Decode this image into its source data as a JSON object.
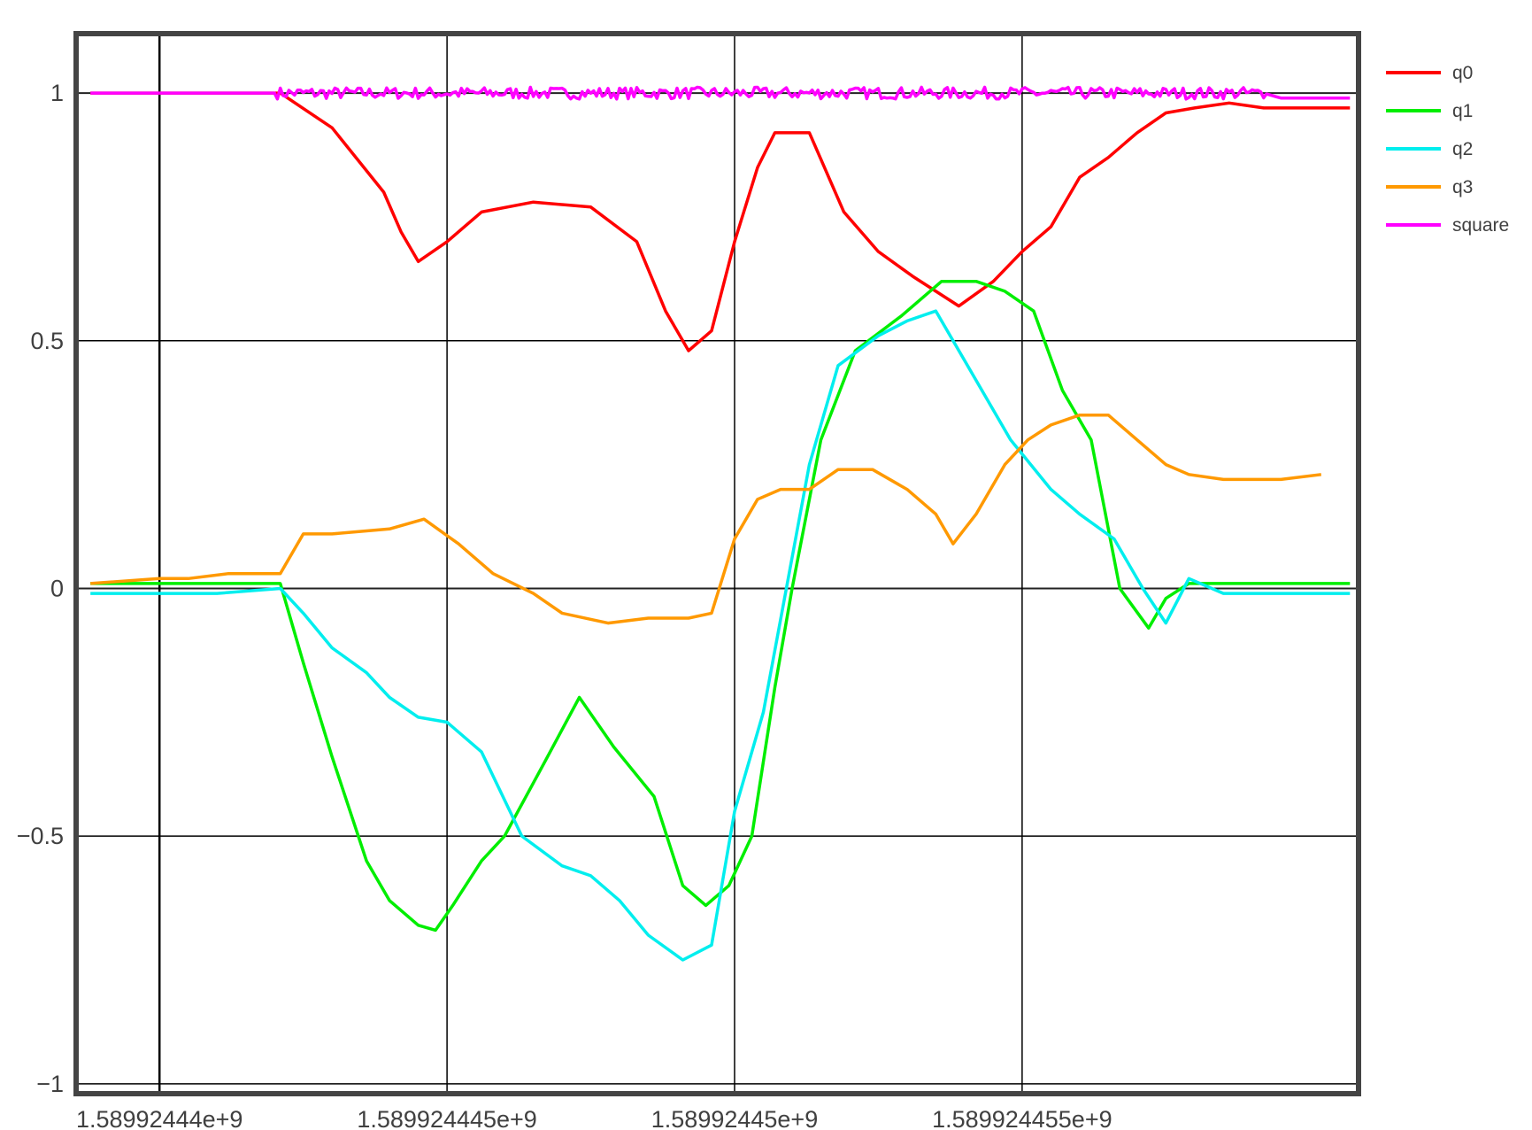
{
  "chart_data": {
    "type": "line",
    "title": "",
    "xlabel": "",
    "ylabel": "",
    "xlim": [
      1589924438.55,
      1589924460.85
    ],
    "ylim": [
      -1.02,
      1.12
    ],
    "x_ticks": [
      1589924440,
      1589924445,
      1589924450,
      1589924455
    ],
    "x_tick_labels": [
      "1.58992444e+9",
      "1.589924445e+9",
      "1.58992445e+9",
      "1.589924455e+9"
    ],
    "y_ticks": [
      1,
      0.5,
      0,
      -0.5,
      -1
    ],
    "y_tick_labels": [
      "1",
      "0.5",
      "0",
      "−0.5",
      "−1"
    ],
    "grid": true,
    "legend_position": "right",
    "series": [
      {
        "name": "q0",
        "color": "#ff0000",
        "x": [
          1589924438.8,
          1589924441.0,
          1589924442.1,
          1589924443.0,
          1589924443.9,
          1589924444.2,
          1589924444.5,
          1589924445.0,
          1589924445.6,
          1589924446.5,
          1589924447.5,
          1589924448.3,
          1589924448.8,
          1589924449.2,
          1589924449.6,
          1589924450.0,
          1589924450.4,
          1589924450.7,
          1589924451.3,
          1589924451.9,
          1589924452.5,
          1589924453.1,
          1589924453.9,
          1589924454.5,
          1589924455.0,
          1589924455.5,
          1589924456.0,
          1589924456.5,
          1589924457.0,
          1589924457.5,
          1589924458.0,
          1589924458.6,
          1589924459.2,
          1589924460.0,
          1589924460.7
        ],
        "y": [
          1.0,
          1.0,
          1.0,
          0.93,
          0.8,
          0.72,
          0.66,
          0.7,
          0.76,
          0.78,
          0.77,
          0.7,
          0.56,
          0.48,
          0.52,
          0.7,
          0.85,
          0.92,
          0.92,
          0.76,
          0.68,
          0.63,
          0.57,
          0.62,
          0.68,
          0.73,
          0.83,
          0.87,
          0.92,
          0.96,
          0.97,
          0.98,
          0.97,
          0.97,
          0.97
        ],
        "noise": 0.0
      },
      {
        "name": "q1",
        "color": "#00ee00",
        "x": [
          1589924438.8,
          1589924441.0,
          1589924442.1,
          1589924442.5,
          1589924443.0,
          1589924443.6,
          1589924444.0,
          1589924444.5,
          1589924444.8,
          1589924445.1,
          1589924445.6,
          1589924446.0,
          1589924446.7,
          1589924447.3,
          1589924447.9,
          1589924448.6,
          1589924449.1,
          1589924449.5,
          1589924449.9,
          1589924450.3,
          1589924450.7,
          1589924451.0,
          1589924451.5,
          1589924452.1,
          1589924452.9,
          1589924453.6,
          1589924454.2,
          1589924454.7,
          1589924455.2,
          1589924455.7,
          1589924456.2,
          1589924456.7,
          1589924457.2,
          1589924457.5,
          1589924457.9,
          1589924458.2,
          1589924459.0,
          1589924460.7
        ],
        "y": [
          0.01,
          0.01,
          0.01,
          -0.15,
          -0.34,
          -0.55,
          -0.63,
          -0.68,
          -0.69,
          -0.64,
          -0.55,
          -0.5,
          -0.35,
          -0.22,
          -0.32,
          -0.42,
          -0.6,
          -0.64,
          -0.6,
          -0.5,
          -0.2,
          0.0,
          0.3,
          0.48,
          0.55,
          0.62,
          0.62,
          0.6,
          0.56,
          0.4,
          0.3,
          0.0,
          -0.08,
          -0.02,
          0.01,
          0.01,
          0.01,
          0.01
        ],
        "noise": 0.0
      },
      {
        "name": "q2",
        "color": "#00eeee",
        "x": [
          1589924438.8,
          1589924441.0,
          1589924442.1,
          1589924442.5,
          1589924443.0,
          1589924443.6,
          1589924444.0,
          1589924444.5,
          1589924445.0,
          1589924445.6,
          1589924446.3,
          1589924447.0,
          1589924447.5,
          1589924448.0,
          1589924448.5,
          1589924449.1,
          1589924449.6,
          1589924450.0,
          1589924450.5,
          1589924450.9,
          1589924451.3,
          1589924451.8,
          1589924452.5,
          1589924453.0,
          1589924453.5,
          1589924453.8,
          1589924454.2,
          1589924454.8,
          1589924455.5,
          1589924456.0,
          1589924456.6,
          1589924457.1,
          1589924457.5,
          1589924457.9,
          1589924458.5,
          1589924460.7
        ],
        "y": [
          -0.01,
          -0.01,
          0.0,
          -0.05,
          -0.12,
          -0.17,
          -0.22,
          -0.26,
          -0.27,
          -0.33,
          -0.5,
          -0.56,
          -0.58,
          -0.63,
          -0.7,
          -0.75,
          -0.72,
          -0.45,
          -0.25,
          0.0,
          0.25,
          0.45,
          0.51,
          0.54,
          0.56,
          0.5,
          0.42,
          0.3,
          0.2,
          0.15,
          0.1,
          0.0,
          -0.07,
          0.02,
          -0.01,
          -0.01
        ],
        "noise": 0.0
      },
      {
        "name": "q3",
        "color": "#ff9900",
        "x": [
          1589924438.8,
          1589924440.0,
          1589924440.5,
          1589924441.2,
          1589924442.1,
          1589924442.5,
          1589924443.0,
          1589924444.0,
          1589924444.6,
          1589924445.2,
          1589924445.8,
          1589924446.5,
          1589924447.0,
          1589924447.8,
          1589924448.5,
          1589924449.2,
          1589924449.6,
          1589924450.0,
          1589924450.4,
          1589924450.8,
          1589924451.3,
          1589924451.8,
          1589924452.4,
          1589924453.0,
          1589924453.5,
          1589924453.8,
          1589924454.2,
          1589924454.7,
          1589924455.1,
          1589924455.5,
          1589924456.0,
          1589924456.5,
          1589924457.0,
          1589924457.5,
          1589924457.9,
          1589924458.5,
          1589924459.5,
          1589924460.2
        ],
        "y": [
          0.01,
          0.02,
          0.02,
          0.03,
          0.03,
          0.11,
          0.11,
          0.12,
          0.14,
          0.09,
          0.03,
          -0.01,
          -0.05,
          -0.07,
          -0.06,
          -0.06,
          -0.05,
          0.1,
          0.18,
          0.2,
          0.2,
          0.24,
          0.24,
          0.2,
          0.15,
          0.09,
          0.15,
          0.25,
          0.3,
          0.33,
          0.35,
          0.35,
          0.3,
          0.25,
          0.23,
          0.22,
          0.22,
          0.23
        ],
        "noise": 0.0
      },
      {
        "name": "square",
        "color": "#ff00ff",
        "x": [
          1589924438.8,
          1589924441.0,
          1589924442.0,
          1589924459.2,
          1589924459.5,
          1589924460.7
        ],
        "y": [
          1.0,
          1.0,
          1.0,
          1.0,
          0.99,
          0.99
        ],
        "noise": 0.012
      }
    ]
  }
}
